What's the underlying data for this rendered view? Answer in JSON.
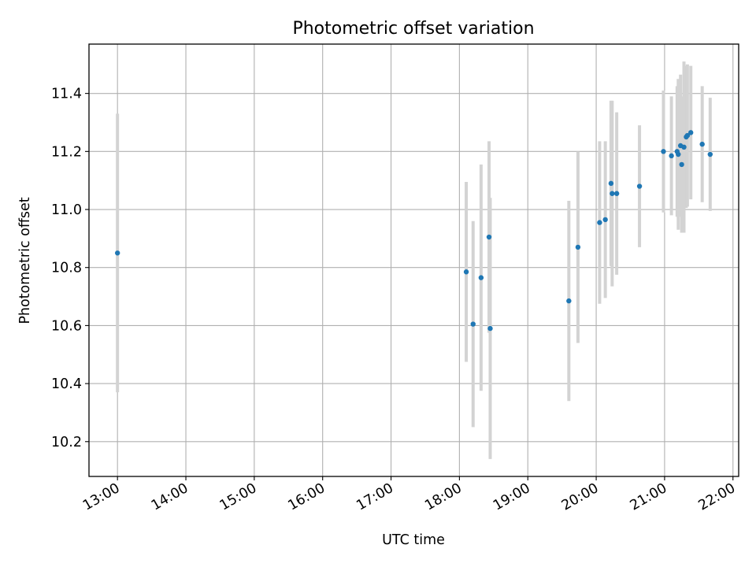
{
  "chart_data": {
    "type": "scatter",
    "title": "Photometric offset variation",
    "xlabel": "UTC time",
    "ylabel": "Photometric offset",
    "x_unit": "UTC time (HH:MM)",
    "xlim": [
      "12:35",
      "22:05"
    ],
    "ylim": [
      10.08,
      11.57
    ],
    "x_ticks": [
      "13:00",
      "14:00",
      "15:00",
      "16:00",
      "17:00",
      "18:00",
      "19:00",
      "20:00",
      "21:00",
      "22:00"
    ],
    "y_ticks": [
      "10.2",
      "10.4",
      "10.6",
      "10.8",
      "11.0",
      "11.2",
      "11.4"
    ],
    "grid": true,
    "marker_color": "#1f77b4",
    "errorbar_color": "#d3d3d3",
    "series": [
      {
        "points": [
          {
            "x": "13:00",
            "y": 10.85,
            "yerr": 0.48
          },
          {
            "x": "18:06",
            "y": 10.785,
            "yerr": 0.31
          },
          {
            "x": "18:12",
            "y": 10.605,
            "yerr": 0.355
          },
          {
            "x": "18:19",
            "y": 10.765,
            "yerr": 0.39
          },
          {
            "x": "18:26",
            "y": 10.905,
            "yerr": 0.33
          },
          {
            "x": "18:27",
            "y": 10.59,
            "yerr": 0.45
          },
          {
            "x": "19:36",
            "y": 10.685,
            "yerr": 0.345
          },
          {
            "x": "19:44",
            "y": 10.87,
            "yerr": 0.33
          },
          {
            "x": "20:03",
            "y": 10.955,
            "yerr": 0.28
          },
          {
            "x": "20:08",
            "y": 10.965,
            "yerr": 0.27
          },
          {
            "x": "20:13",
            "y": 11.09,
            "yerr": 0.285
          },
          {
            "x": "20:14",
            "y": 11.055,
            "yerr": 0.32
          },
          {
            "x": "20:18",
            "y": 11.055,
            "yerr": 0.28
          },
          {
            "x": "20:38",
            "y": 11.08,
            "yerr": 0.21
          },
          {
            "x": "20:59",
            "y": 11.2,
            "yerr": 0.21
          },
          {
            "x": "21:06",
            "y": 11.185,
            "yerr": 0.205
          },
          {
            "x": "21:11",
            "y": 11.2,
            "yerr": 0.225
          },
          {
            "x": "21:12",
            "y": 11.19,
            "yerr": 0.26
          },
          {
            "x": "21:14",
            "y": 11.22,
            "yerr": 0.245
          },
          {
            "x": "21:15",
            "y": 11.155,
            "yerr": 0.235
          },
          {
            "x": "21:17",
            "y": 11.215,
            "yerr": 0.295
          },
          {
            "x": "21:19",
            "y": 11.25,
            "yerr": 0.245
          },
          {
            "x": "21:20",
            "y": 11.255,
            "yerr": 0.245
          },
          {
            "x": "21:23",
            "y": 11.265,
            "yerr": 0.23
          },
          {
            "x": "21:33",
            "y": 11.225,
            "yerr": 0.2
          },
          {
            "x": "21:40",
            "y": 11.19,
            "yerr": 0.195
          }
        ]
      }
    ]
  }
}
